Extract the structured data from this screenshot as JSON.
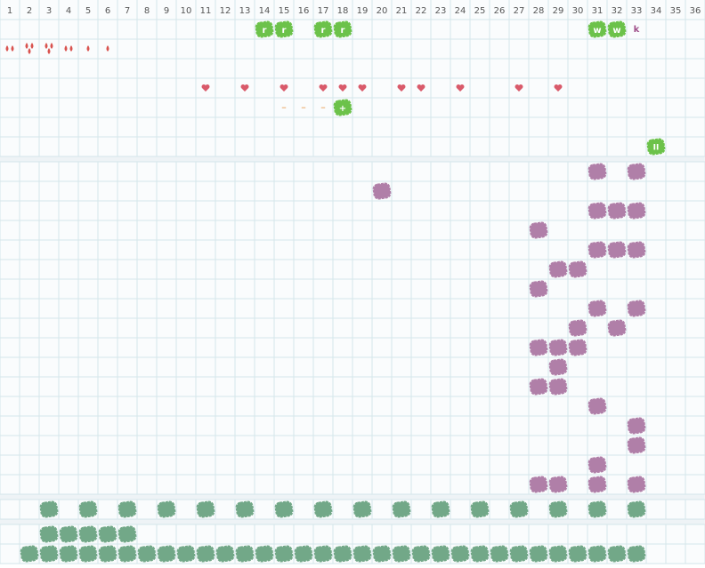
{
  "columns": [
    "1",
    "2",
    "3",
    "4",
    "5",
    "6",
    "7",
    "8",
    "9",
    "10",
    "11",
    "12",
    "13",
    "14",
    "15",
    "16",
    "17",
    "18",
    "19",
    "20",
    "21",
    "22",
    "23",
    "24",
    "25",
    "26",
    "27",
    "28",
    "29",
    "30",
    "31",
    "32",
    "33",
    "34",
    "35",
    "36"
  ],
  "top": {
    "letter_blobs": [
      {
        "col": 14,
        "label": "r"
      },
      {
        "col": 15,
        "label": "r"
      },
      {
        "col": 17,
        "label": "r"
      },
      {
        "col": 18,
        "label": "r"
      },
      {
        "col": 31,
        "label": "w"
      },
      {
        "col": 32,
        "label": "w"
      }
    ],
    "letter_text": {
      "col": 33,
      "label": "k"
    },
    "drops": [
      2,
      3,
      3,
      2,
      1,
      1
    ],
    "hearts": [
      11,
      13,
      15,
      17,
      18,
      19,
      21,
      22,
      24,
      27,
      29
    ],
    "dashes": [
      {
        "col": 15,
        "label": "–"
      },
      {
        "col": 16,
        "label": "–"
      },
      {
        "col": 17,
        "label": "–"
      }
    ],
    "plus_blob": {
      "col": 18,
      "label": "+"
    },
    "pause_blob": {
      "col": 34,
      "label": "II"
    }
  },
  "purple_rows": [
    [
      31,
      33
    ],
    [
      20
    ],
    [
      31,
      32,
      33
    ],
    [
      28
    ],
    [
      31,
      32,
      33
    ],
    [
      29,
      30
    ],
    [
      28
    ],
    [
      31,
      33
    ],
    [
      30,
      32
    ],
    [
      28,
      29,
      30
    ],
    [
      29
    ],
    [
      28,
      29
    ],
    [
      31
    ],
    [
      33
    ],
    [
      33
    ],
    [
      31
    ],
    [
      28,
      29,
      31,
      33
    ]
  ],
  "green_rows": [
    [
      3,
      5,
      7,
      9,
      11,
      13,
      15,
      17,
      19,
      21,
      23,
      25,
      27,
      29,
      31,
      33
    ],
    [
      3,
      4,
      5,
      6,
      7
    ],
    [
      2,
      3,
      4,
      5,
      6,
      7,
      8,
      9,
      10,
      11,
      12,
      13,
      14,
      15,
      16,
      17,
      18,
      19,
      20,
      21,
      22,
      23,
      24,
      25,
      26,
      27,
      28,
      29,
      30,
      31,
      32,
      33
    ]
  ]
}
